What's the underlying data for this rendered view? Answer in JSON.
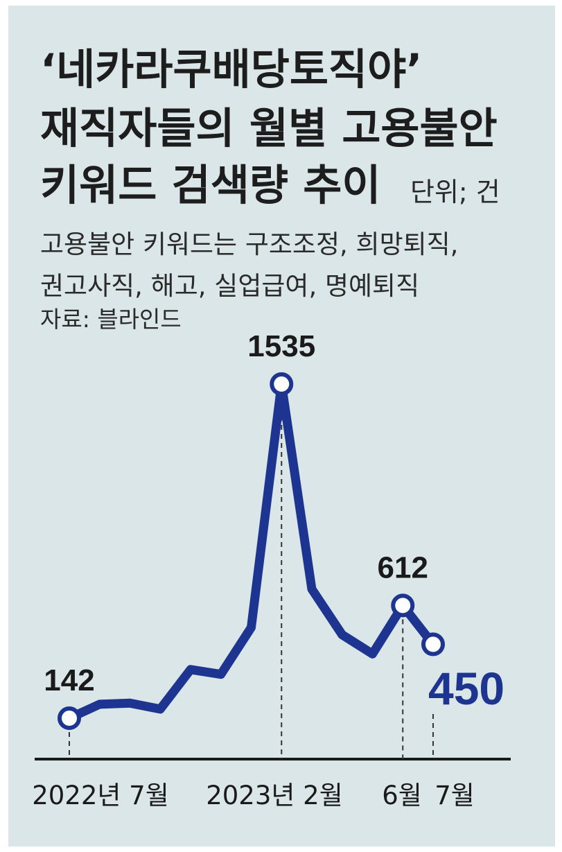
{
  "title_lines": [
    "‘네카라쿠배당토직야’",
    "재직자들의 월별 고용불안",
    "키워드 검색량 추이"
  ],
  "unit_label": "단위; 건",
  "notes": [
    "고용불안 키워드는 구조조정, 희망퇴직,",
    "권고사직, 해고, 실업급여, 명예퇴직"
  ],
  "source": "자료: 블라인드",
  "chart_data": {
    "type": "line",
    "title": "‘네카라쿠배당토직야’ 재직자들의 월별 고용불안 키워드 검색량 추이",
    "x": [
      "2022-07",
      "2022-08",
      "2022-09",
      "2022-10",
      "2022-11",
      "2022-12",
      "2023-01",
      "2023-02",
      "2023-03",
      "2023-04",
      "2023-05",
      "2023-06",
      "2023-07"
    ],
    "values": [
      142,
      200,
      205,
      180,
      345,
      325,
      520,
      1535,
      680,
      490,
      410,
      612,
      450
    ],
    "ylim": [
      0,
      1700
    ],
    "x_tick_labels": [
      {
        "x": "2022-07",
        "label": "2022년 7월"
      },
      {
        "x": "2023-02",
        "label": "2023년 2월"
      },
      {
        "x": "2023-06",
        "label": "6월"
      },
      {
        "x": "2023-07",
        "label": "7월"
      }
    ],
    "marked_points": [
      {
        "x": "2022-07",
        "label": "142",
        "emphasis": false
      },
      {
        "x": "2023-02",
        "label": "1535",
        "emphasis": false
      },
      {
        "x": "2023-06",
        "label": "612",
        "emphasis": false
      },
      {
        "x": "2023-07",
        "label": "450",
        "emphasis": true
      }
    ],
    "line_color": "#1d3590",
    "marker_fill": "#ffffff",
    "grid": false
  }
}
